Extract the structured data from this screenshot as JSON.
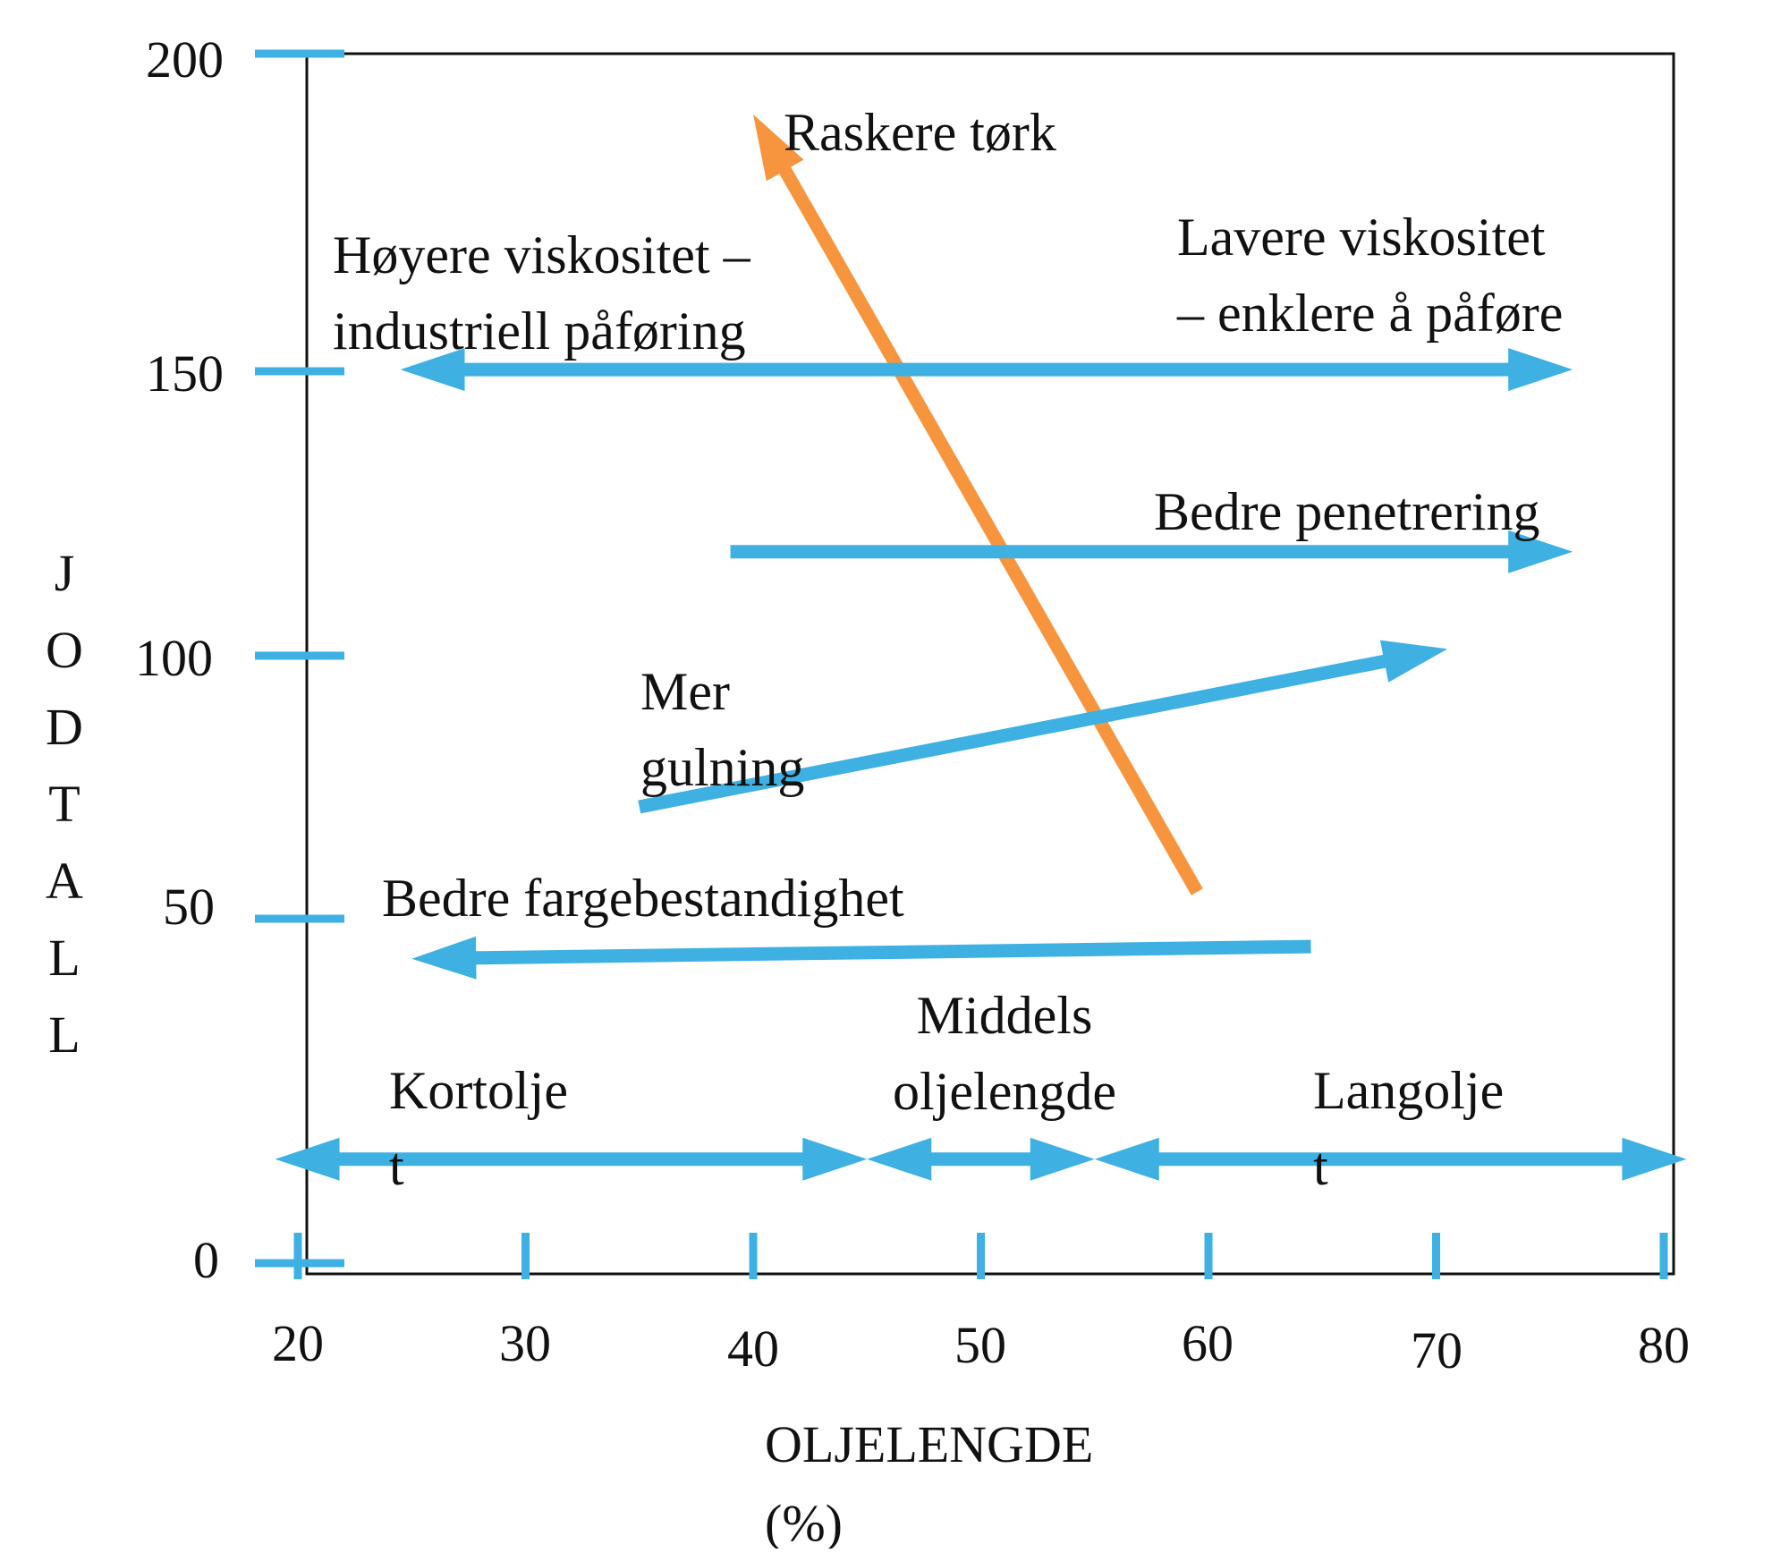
{
  "colors": {
    "blue": "#3fb0e2",
    "orange": "#f7953f",
    "frame": "#111111",
    "text": "#111111"
  },
  "chart_data": {
    "type": "diagram",
    "xlabel": [
      "OLJELENGDE",
      "(%)"
    ],
    "ylabel": "JODTALL",
    "xlim": [
      20,
      80
    ],
    "ylim": [
      0,
      200
    ],
    "x_ticks": [
      "20",
      "30",
      "40",
      "50",
      "60",
      "70",
      "80"
    ],
    "y_ticks": [
      "200",
      "150",
      "100",
      "50",
      "0"
    ],
    "arrows": [
      {
        "id": "raskere-tork",
        "color": "orange",
        "from": [
          59.5,
          62
        ],
        "to": [
          40,
          190
        ]
      },
      {
        "id": "viskositet",
        "color": "blue",
        "heads": "both",
        "from": [
          24.5,
          148
        ],
        "to": [
          76,
          148
        ]
      },
      {
        "id": "penetrering",
        "color": "blue",
        "heads": "end",
        "from": [
          39,
          118
        ],
        "to": [
          76,
          118
        ]
      },
      {
        "id": "gulning",
        "color": "blue",
        "heads": "end",
        "from": [
          35,
          76
        ],
        "to": [
          70.5,
          102
        ]
      },
      {
        "id": "fargebestandighet",
        "color": "blue",
        "heads": "end",
        "from": [
          64.5,
          53
        ],
        "to": [
          25,
          51
        ]
      },
      {
        "id": "kortolje",
        "color": "blue",
        "heads": "both",
        "from": [
          19,
          18
        ],
        "to": [
          45,
          18
        ]
      },
      {
        "id": "middels",
        "color": "blue",
        "heads": "both",
        "from": [
          45,
          18
        ],
        "to": [
          55,
          18
        ]
      },
      {
        "id": "langolje",
        "color": "blue",
        "heads": "both",
        "from": [
          55,
          18
        ],
        "to": [
          81,
          18
        ]
      }
    ],
    "labels": {
      "raskere_tork": "Raskere tørk",
      "hoyere_viskositet": [
        "Høyere viskositet –",
        "industriell påføring"
      ],
      "lavere_viskositet": [
        "Lavere viskositet",
        "– enklere å påføre"
      ],
      "bedre_penetrering": "Bedre penetrering",
      "mer_gulning": [
        "Mer",
        "gulning"
      ],
      "bedre_fargebestandighet": "Bedre fargebestandighet",
      "kortolje": [
        "Kortolje",
        "t"
      ],
      "middels_oljelengde": [
        "Middels",
        "oljelengde"
      ],
      "langolje": [
        "Langolje",
        "t"
      ]
    }
  }
}
